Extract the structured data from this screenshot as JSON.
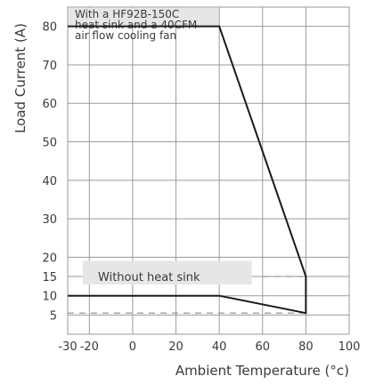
{
  "chart_data": {
    "type": "line",
    "xlabel": "Ambient Temperature (°c)",
    "ylabel": "Load Current (A)",
    "xlim": [
      -30,
      100
    ],
    "ylim": [
      0,
      85
    ],
    "x_ticks": [
      -30,
      -20,
      0,
      20,
      40,
      60,
      80,
      100
    ],
    "x_tick_labels": [
      "-30",
      "-20",
      "0",
      "20",
      "40",
      "60",
      "80",
      "100"
    ],
    "y_ticks": [
      5,
      10,
      15,
      20,
      30,
      40,
      50,
      60,
      70,
      80
    ],
    "y_tick_labels": [
      "5",
      "10",
      "15",
      "20",
      "30",
      "40",
      "50",
      "60",
      "70",
      "80"
    ],
    "grid": true,
    "series": [
      {
        "points": [
          [
            -30,
            80
          ],
          [
            40,
            80
          ],
          [
            80,
            15
          ],
          [
            80,
            5.5
          ],
          [
            40,
            10
          ],
          [
            -30,
            10
          ]
        ]
      }
    ],
    "reference_lines": [
      {
        "y": 15,
        "x_range": [
          60,
          80
        ],
        "style": "dashed"
      },
      {
        "y": 5.5,
        "x_range": [
          -30,
          80
        ],
        "style": "dashed"
      }
    ],
    "annotations": [
      {
        "lines": [
          "With a HF92B-150C",
          "heat sink  and a 40CFM",
          "air flow cooling fan"
        ]
      },
      {
        "lines": [
          "Without heat sink"
        ]
      }
    ],
    "colors": {
      "line": "#1a1a1a",
      "grid": "#9a9a9a",
      "label_box": "#e6e6e6",
      "dashed": "#8a8a8a"
    }
  }
}
